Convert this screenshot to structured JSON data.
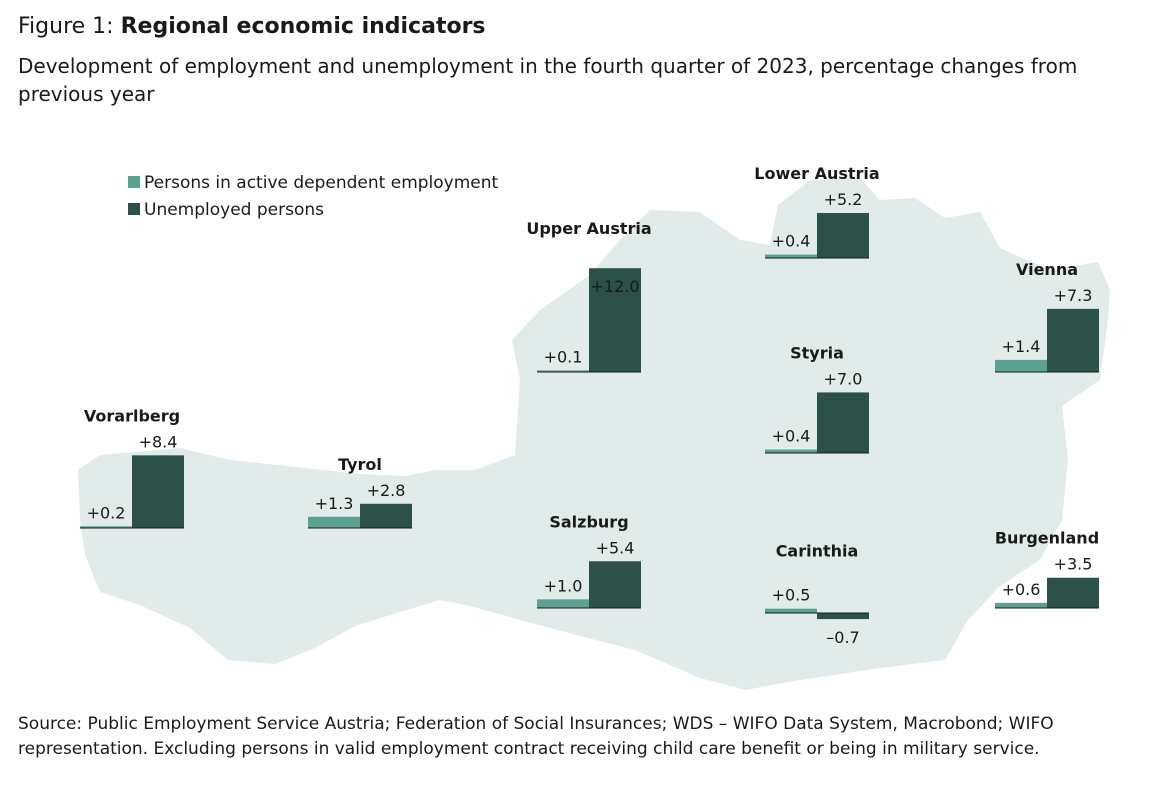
{
  "figure_label": "Figure 1:",
  "title": "Regional economic indicators",
  "subtitle": "Development of employment and unemployment in the fourth quarter of 2023, percentage changes from previous year",
  "source": "Source: Public Employment Service Austria; Federation of Social Insurances; WDS – WIFO Data System, Macrobond; WIFO representation. Excluding persons in valid employment contract receiving child care benefit or being in military service.",
  "colors": {
    "employment": "#5aa191",
    "unemployment": "#2b5148",
    "map": "#e1ebe9"
  },
  "chart_data": {
    "type": "bar",
    "series": [
      {
        "name": "Persons in active dependent employment",
        "color": "#5aa191"
      },
      {
        "name": "Unemployed persons",
        "color": "#2b5148"
      }
    ],
    "regions": [
      {
        "name": "Vorarlberg",
        "employment": 0.2,
        "unemployment": 8.4,
        "employment_label": "+0.2",
        "unemployment_label": "+8.4"
      },
      {
        "name": "Tyrol",
        "employment": 1.3,
        "unemployment": 2.8,
        "employment_label": "+1.3",
        "unemployment_label": "+2.8"
      },
      {
        "name": "Upper Austria",
        "employment": 0.1,
        "unemployment": 12.0,
        "employment_label": "+0.1",
        "unemployment_label": "+12.0"
      },
      {
        "name": "Salzburg",
        "employment": 1.0,
        "unemployment": 5.4,
        "employment_label": "+1.0",
        "unemployment_label": "+5.4"
      },
      {
        "name": "Lower Austria",
        "employment": 0.4,
        "unemployment": 5.2,
        "employment_label": "+0.4",
        "unemployment_label": "+5.2"
      },
      {
        "name": "Styria",
        "employment": 0.4,
        "unemployment": 7.0,
        "employment_label": "+0.4",
        "unemployment_label": "+7.0"
      },
      {
        "name": "Carinthia",
        "employment": 0.5,
        "unemployment": -0.7,
        "employment_label": "+0.5",
        "unemployment_label": "–0.7"
      },
      {
        "name": "Vienna",
        "employment": 1.4,
        "unemployment": 7.3,
        "employment_label": "+1.4",
        "unemployment_label": "+7.3"
      },
      {
        "name": "Burgenland",
        "employment": 0.6,
        "unemployment": 3.5,
        "employment_label": "+0.6",
        "unemployment_label": "+3.5"
      }
    ]
  }
}
